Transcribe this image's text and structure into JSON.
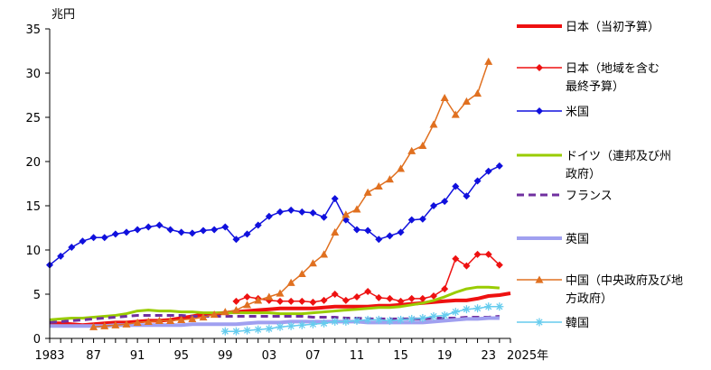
{
  "chart_data": {
    "type": "line",
    "title": "",
    "ylabel": "兆円",
    "xlabel": "",
    "ylim": [
      0,
      35
    ],
    "xlim": [
      1983,
      2025
    ],
    "y_ticks": [
      "0",
      "5",
      "10",
      "15",
      "20",
      "25",
      "30",
      "35"
    ],
    "x_ticks": [
      {
        "value": 1983,
        "label": "1983"
      },
      {
        "value": 1987,
        "label": "87"
      },
      {
        "value": 1991,
        "label": "91"
      },
      {
        "value": 1995,
        "label": "95"
      },
      {
        "value": 1999,
        "label": "99"
      },
      {
        "value": 2003,
        "label": "03"
      },
      {
        "value": 2007,
        "label": "07"
      },
      {
        "value": 2011,
        "label": "11"
      },
      {
        "value": 2015,
        "label": "15"
      },
      {
        "value": 2019,
        "label": "19"
      },
      {
        "value": 2023,
        "label": "23"
      },
      {
        "value": 2025,
        "label": "2025年"
      }
    ],
    "series": [
      {
        "name": "日本（当初予算）",
        "legend_lines": [
          "日本（当初予算）"
        ],
        "color": "#ee1111",
        "style": "solid",
        "width": 4,
        "marker": "none",
        "x": [
          1983,
          1984,
          1985,
          1986,
          1987,
          1988,
          1989,
          1990,
          1991,
          1992,
          1993,
          1994,
          1995,
          1996,
          1997,
          1998,
          1999,
          2000,
          2001,
          2002,
          2003,
          2004,
          2005,
          2006,
          2007,
          2008,
          2009,
          2010,
          2011,
          2012,
          2013,
          2014,
          2015,
          2016,
          2017,
          2018,
          2019,
          2020,
          2021,
          2022,
          2023,
          2024,
          2025
        ],
        "values": [
          1.7,
          1.7,
          1.6,
          1.5,
          1.6,
          1.7,
          1.8,
          1.8,
          1.9,
          2.0,
          2.0,
          2.1,
          2.3,
          2.5,
          2.7,
          2.8,
          2.9,
          3.0,
          3.1,
          3.2,
          3.3,
          3.4,
          3.4,
          3.4,
          3.4,
          3.5,
          3.6,
          3.6,
          3.6,
          3.6,
          3.7,
          3.7,
          3.8,
          3.9,
          4.0,
          4.1,
          4.2,
          4.3,
          4.3,
          4.5,
          4.8,
          4.9,
          5.1
        ]
      },
      {
        "name": "日本（地域を含む最終予算）",
        "legend_lines": [
          "日本（地域を含む",
          "最終予算）"
        ],
        "color": "#ee1111",
        "style": "solid",
        "width": 1.5,
        "marker": "diamond",
        "x": [
          2000,
          2001,
          2002,
          2003,
          2004,
          2005,
          2006,
          2007,
          2008,
          2009,
          2010,
          2011,
          2012,
          2013,
          2014,
          2015,
          2016,
          2017,
          2018,
          2019,
          2020,
          2021,
          2022,
          2023,
          2024
        ],
        "values": [
          4.2,
          4.7,
          4.5,
          4.3,
          4.2,
          4.2,
          4.2,
          4.1,
          4.3,
          5.0,
          4.3,
          4.7,
          5.3,
          4.6,
          4.5,
          4.2,
          4.5,
          4.5,
          4.8,
          5.6,
          9.0,
          8.2,
          9.5,
          9.5,
          8.3
        ]
      },
      {
        "name": "米国",
        "legend_lines": [
          "米国"
        ],
        "color": "#1010dd",
        "style": "solid",
        "width": 1.5,
        "marker": "diamond",
        "x": [
          1983,
          1984,
          1985,
          1986,
          1987,
          1988,
          1989,
          1990,
          1991,
          1992,
          1993,
          1994,
          1995,
          1996,
          1997,
          1998,
          1999,
          2000,
          2001,
          2002,
          2003,
          2004,
          2005,
          2006,
          2007,
          2008,
          2009,
          2010,
          2011,
          2012,
          2013,
          2014,
          2015,
          2016,
          2017,
          2018,
          2019,
          2020,
          2021,
          2022,
          2023,
          2024
        ],
        "values": [
          8.3,
          9.3,
          10.3,
          11.0,
          11.4,
          11.4,
          11.8,
          12.0,
          12.3,
          12.6,
          12.8,
          12.3,
          12.0,
          11.9,
          12.2,
          12.3,
          12.6,
          11.2,
          11.8,
          12.8,
          13.8,
          14.3,
          14.5,
          14.3,
          14.2,
          13.7,
          15.8,
          13.4,
          12.3,
          12.2,
          11.2,
          11.6,
          12.0,
          13.4,
          13.5,
          15.0,
          15.5,
          17.2,
          16.1,
          17.8,
          18.9,
          19.5
        ]
      },
      {
        "name": "ドイツ（連邦及び州政府）",
        "legend_lines": [
          "ドイツ（連邦及び州",
          "政府）"
        ],
        "color": "#99cc00",
        "style": "solid",
        "width": 3,
        "marker": "none",
        "x": [
          1983,
          1984,
          1985,
          1986,
          1987,
          1988,
          1989,
          1990,
          1991,
          1992,
          1993,
          1994,
          1995,
          1996,
          1997,
          1998,
          1999,
          2000,
          2001,
          2002,
          2003,
          2004,
          2005,
          2006,
          2007,
          2008,
          2009,
          2010,
          2011,
          2012,
          2013,
          2014,
          2015,
          2016,
          2017,
          2018,
          2019,
          2020,
          2021,
          2022,
          2023,
          2024
        ],
        "values": [
          2.1,
          2.2,
          2.3,
          2.3,
          2.4,
          2.5,
          2.6,
          2.8,
          3.1,
          3.2,
          3.1,
          3.1,
          3.0,
          3.0,
          2.9,
          2.9,
          2.9,
          2.9,
          2.9,
          2.9,
          2.9,
          2.8,
          2.8,
          2.8,
          2.9,
          3.0,
          3.1,
          3.2,
          3.3,
          3.4,
          3.5,
          3.5,
          3.6,
          3.8,
          4.0,
          4.3,
          4.7,
          5.2,
          5.6,
          5.8,
          5.8,
          5.7
        ]
      },
      {
        "name": "フランス",
        "legend_lines": [
          "フランス"
        ],
        "color": "#7030a0",
        "style": "dashed",
        "width": 3,
        "marker": "none",
        "x": [
          1983,
          1984,
          1985,
          1986,
          1987,
          1988,
          1989,
          1990,
          1991,
          1992,
          1993,
          1994,
          1995,
          1996,
          1997,
          1998,
          1999,
          2000,
          2001,
          2002,
          2003,
          2004,
          2005,
          2006,
          2007,
          2008,
          2009,
          2010,
          2011,
          2012,
          2013,
          2014,
          2015,
          2016,
          2017,
          2018,
          2019,
          2020,
          2021,
          2022,
          2023,
          2024
        ],
        "values": [
          1.8,
          1.9,
          2.0,
          2.1,
          2.2,
          2.3,
          2.4,
          2.5,
          2.6,
          2.6,
          2.6,
          2.6,
          2.6,
          2.5,
          2.5,
          2.5,
          2.5,
          2.5,
          2.5,
          2.5,
          2.5,
          2.5,
          2.5,
          2.5,
          2.4,
          2.4,
          2.4,
          2.3,
          2.3,
          2.2,
          2.2,
          2.2,
          2.2,
          2.2,
          2.2,
          2.3,
          2.3,
          2.3,
          2.4,
          2.4,
          2.4,
          2.5
        ]
      },
      {
        "name": "英国",
        "legend_lines": [
          "英国"
        ],
        "color": "#a0a0f0",
        "style": "solid",
        "width": 4,
        "marker": "none",
        "x": [
          1983,
          1984,
          1985,
          1986,
          1987,
          1988,
          1989,
          1990,
          1991,
          1992,
          1993,
          1994,
          1995,
          1996,
          1997,
          1998,
          1999,
          2000,
          2001,
          2002,
          2003,
          2004,
          2005,
          2006,
          2007,
          2008,
          2009,
          2010,
          2011,
          2012,
          2013,
          2014,
          2015,
          2016,
          2017,
          2018,
          2019,
          2020,
          2021,
          2022,
          2023,
          2024
        ],
        "values": [
          1.4,
          1.4,
          1.4,
          1.4,
          1.4,
          1.4,
          1.5,
          1.5,
          1.5,
          1.5,
          1.5,
          1.5,
          1.5,
          1.6,
          1.6,
          1.6,
          1.6,
          1.6,
          1.7,
          1.8,
          1.8,
          1.8,
          1.9,
          1.9,
          1.9,
          1.9,
          1.9,
          1.9,
          1.9,
          1.8,
          1.8,
          1.8,
          1.8,
          1.8,
          1.8,
          1.9,
          2.0,
          2.1,
          2.2,
          2.2,
          2.3,
          2.3
        ]
      },
      {
        "name": "中国（中央政府及び地方政府）",
        "legend_lines": [
          "中国（中央政府及び地",
          "方政府）"
        ],
        "color": "#e07020",
        "style": "solid",
        "width": 1.5,
        "marker": "triangle",
        "x": [
          1987,
          1988,
          1989,
          1990,
          1991,
          1992,
          1993,
          1994,
          1995,
          1996,
          1997,
          1998,
          1999,
          2000,
          2001,
          2002,
          2003,
          2004,
          2005,
          2006,
          2007,
          2008,
          2009,
          2010,
          2011,
          2012,
          2013,
          2014,
          2015,
          2016,
          2017,
          2018,
          2019,
          2020,
          2021,
          2022,
          2023
        ],
        "values": [
          1.3,
          1.4,
          1.5,
          1.6,
          1.8,
          1.9,
          2.0,
          2.0,
          2.1,
          2.2,
          2.4,
          2.7,
          3.0,
          3.2,
          3.8,
          4.3,
          4.7,
          5.1,
          6.3,
          7.3,
          8.5,
          9.5,
          12.0,
          14.0,
          14.6,
          16.5,
          17.2,
          18.0,
          19.2,
          21.2,
          21.8,
          24.2,
          27.2,
          25.3,
          26.8,
          27.7,
          31.3
        ]
      },
      {
        "name": "韓国",
        "legend_lines": [
          "韓国"
        ],
        "color": "#66ccee",
        "style": "solid",
        "width": 1.5,
        "marker": "star",
        "x": [
          1999,
          2000,
          2001,
          2002,
          2003,
          2004,
          2005,
          2006,
          2007,
          2008,
          2009,
          2010,
          2011,
          2012,
          2013,
          2014,
          2015,
          2016,
          2017,
          2018,
          2019,
          2020,
          2021,
          2022,
          2023,
          2024
        ],
        "values": [
          0.8,
          0.8,
          0.9,
          1.0,
          1.1,
          1.3,
          1.4,
          1.5,
          1.6,
          1.7,
          1.9,
          1.9,
          2.0,
          2.1,
          2.1,
          2.0,
          2.1,
          2.2,
          2.3,
          2.5,
          2.6,
          3.0,
          3.3,
          3.4,
          3.6,
          3.6
        ]
      }
    ]
  }
}
